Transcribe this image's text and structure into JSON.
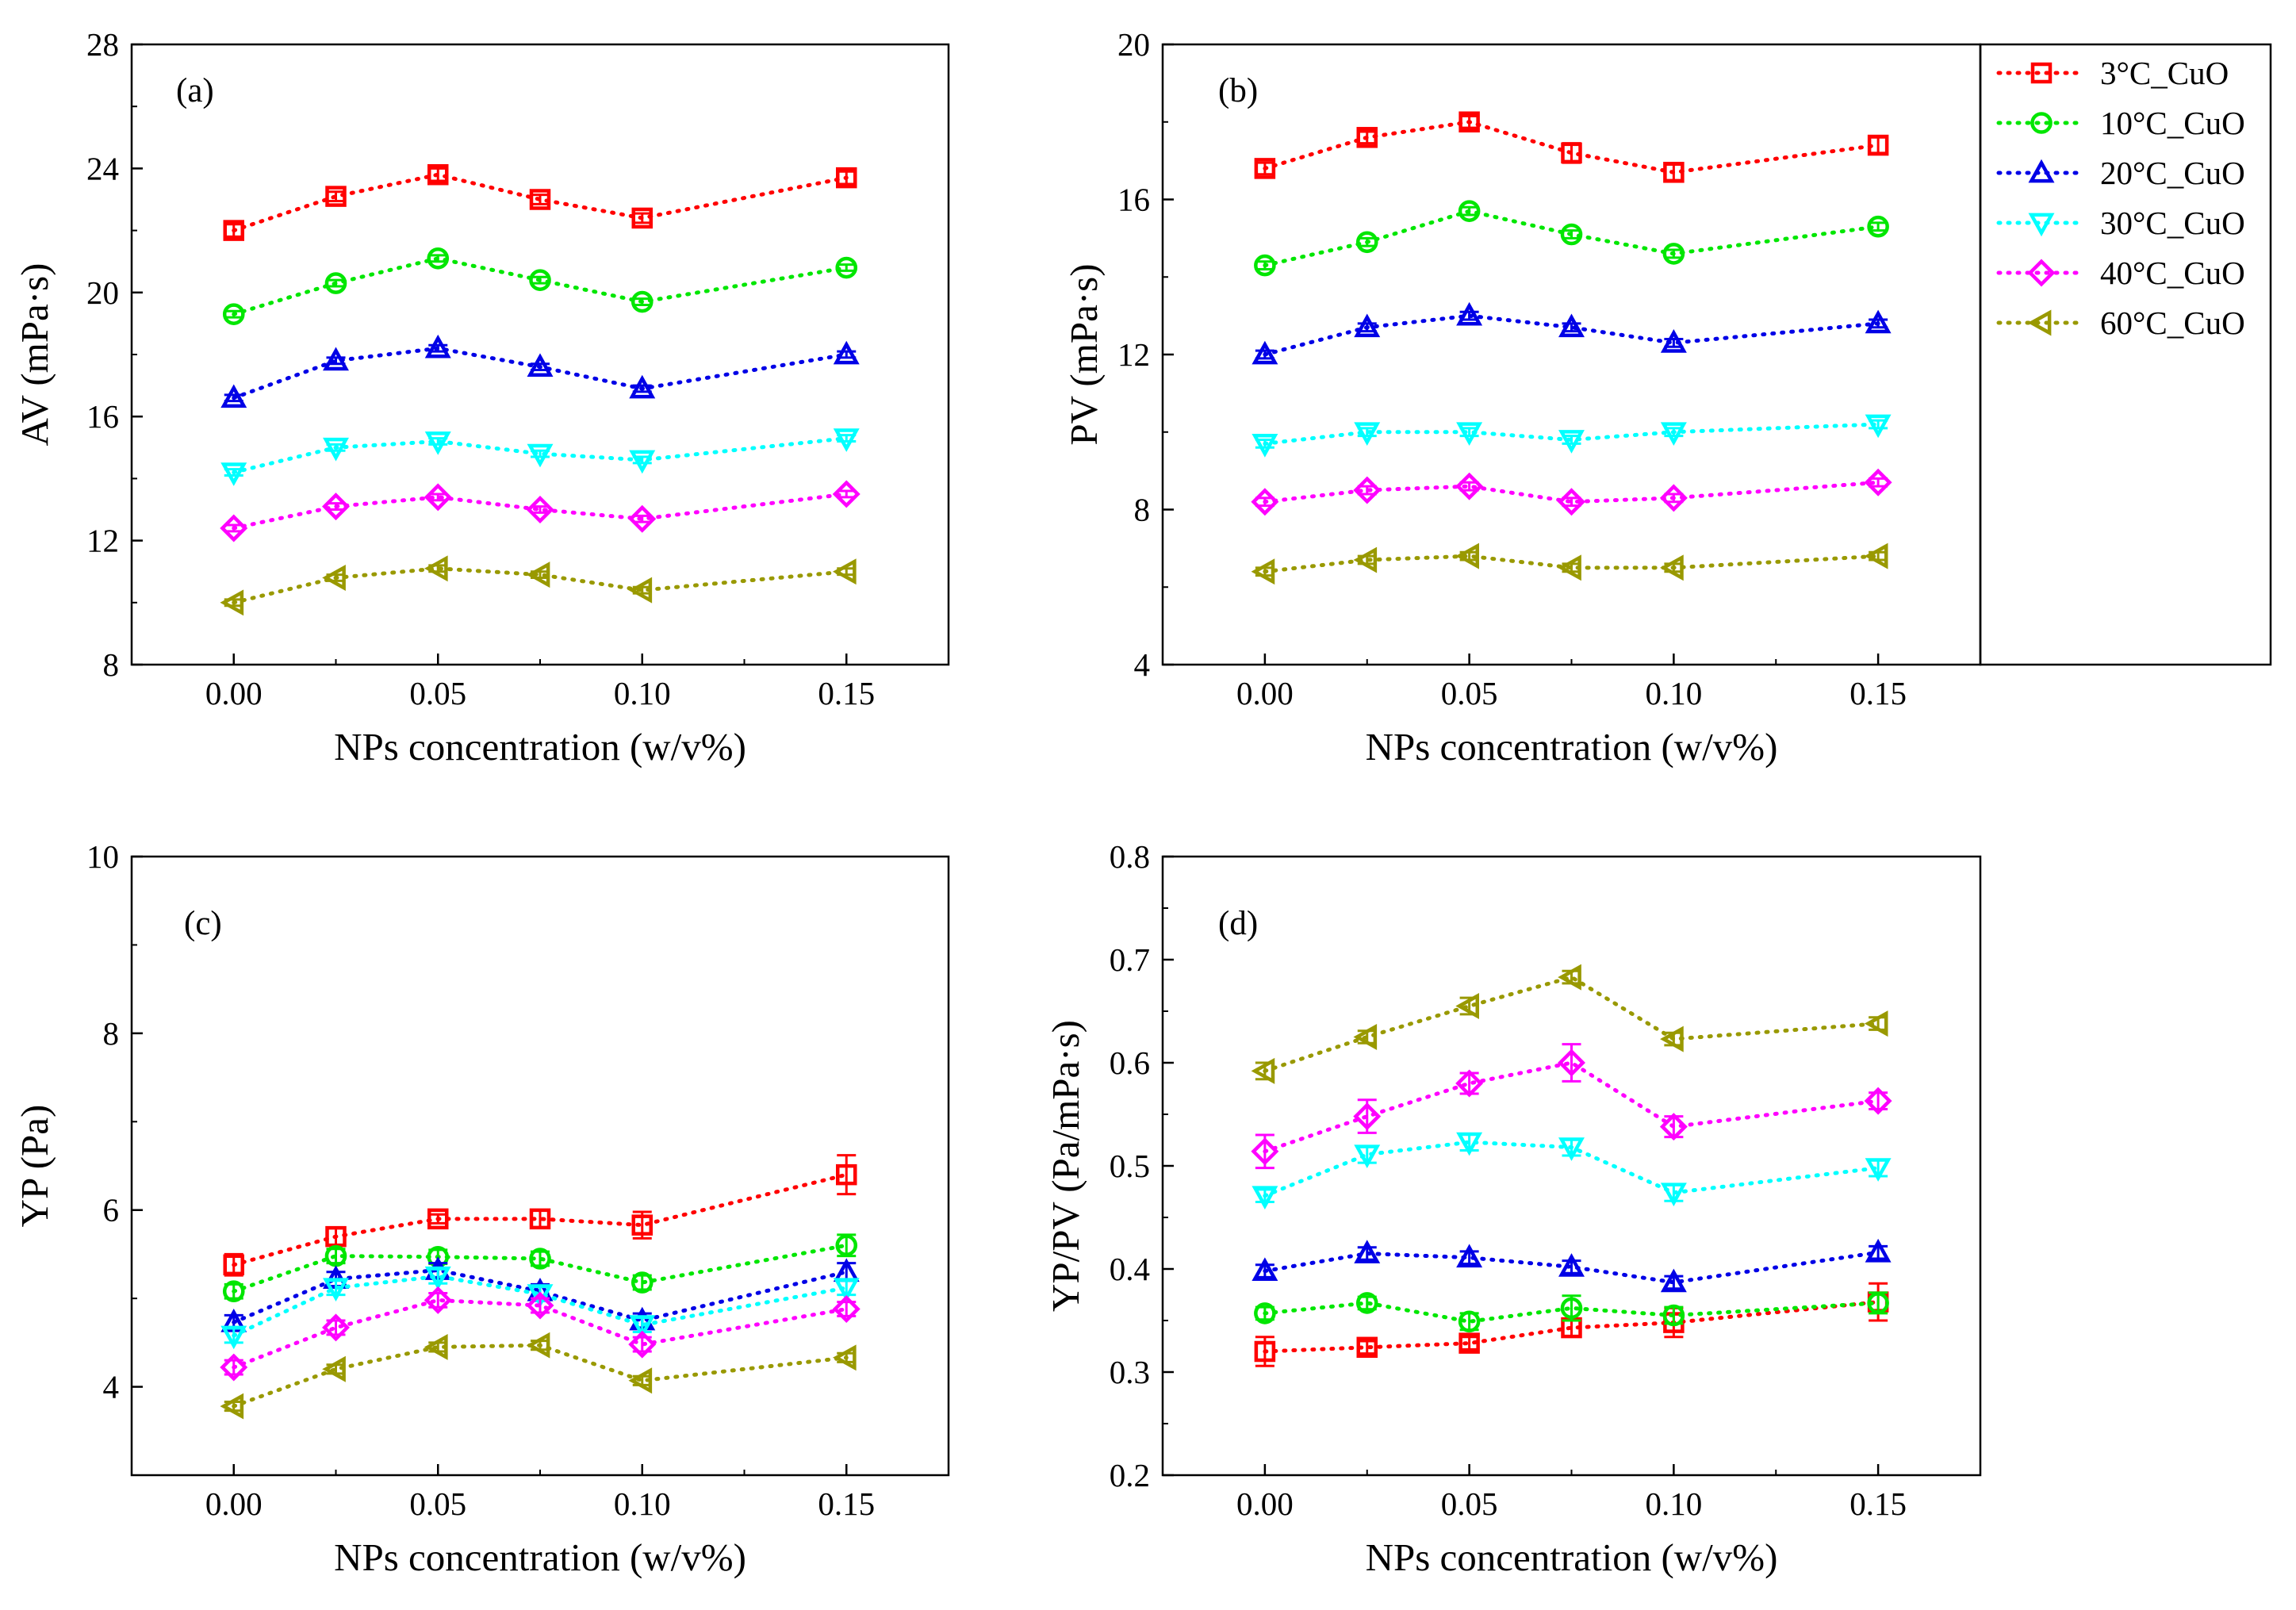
{
  "colors": {
    "3C": "#ff0000",
    "10C": "#00e600",
    "20C": "#0000e6",
    "30C": "#00ffff",
    "40C": "#ff00ff",
    "60C": "#999900"
  },
  "legend": {
    "entries": [
      {
        "key": "3C",
        "label": "3°C_CuO",
        "marker": "square"
      },
      {
        "key": "10C",
        "label": "10°C_CuO",
        "marker": "circle"
      },
      {
        "key": "20C",
        "label": "20°C_CuO",
        "marker": "triangle-up"
      },
      {
        "key": "30C",
        "label": "30°C_CuO",
        "marker": "triangle-down"
      },
      {
        "key": "40C",
        "label": "40°C_CuO",
        "marker": "diamond"
      },
      {
        "key": "60C",
        "label": "60°C_CuO",
        "marker": "triangle-left"
      }
    ]
  },
  "chart_data": [
    {
      "id": "a",
      "type": "scatter",
      "panel_label": "(a)",
      "xlabel": "NPs concentration (w/v%)",
      "ylabel": "AV (mPa·s)",
      "xlim": [
        -0.025,
        0.175
      ],
      "ylim": [
        8,
        28
      ],
      "xticks": [
        0.0,
        0.05,
        0.1,
        0.15
      ],
      "xtick_labels": [
        "0.00",
        "0.05",
        "0.10",
        "0.15"
      ],
      "yticks": [
        8,
        12,
        16,
        20,
        24,
        28
      ],
      "ytick_labels": [
        "8",
        "12",
        "16",
        "20",
        "24",
        "28"
      ],
      "x": [
        0.0,
        0.025,
        0.05,
        0.075,
        0.1,
        0.15
      ],
      "series": [
        {
          "key": "3C",
          "name": "3°C_CuO",
          "values": [
            22.0,
            23.1,
            23.8,
            23.0,
            22.4,
            23.7
          ],
          "errors": [
            0.2,
            0.15,
            0.2,
            0.15,
            0.15,
            0.2
          ]
        },
        {
          "key": "10C",
          "name": "10°C_CuO",
          "values": [
            19.3,
            20.3,
            21.1,
            20.4,
            19.7,
            20.8
          ],
          "errors": [
            0.1,
            0.1,
            0.1,
            0.1,
            0.1,
            0.1
          ]
        },
        {
          "key": "20C",
          "name": "20°C_CuO",
          "values": [
            16.6,
            17.8,
            18.2,
            17.6,
            16.9,
            18.0
          ],
          "errors": [
            0.1,
            0.1,
            0.1,
            0.1,
            0.1,
            0.1
          ]
        },
        {
          "key": "30C",
          "name": "30°C_CuO",
          "values": [
            14.2,
            15.0,
            15.2,
            14.8,
            14.6,
            15.3
          ],
          "errors": [
            0.1,
            0.1,
            0.1,
            0.1,
            0.1,
            0.1
          ]
        },
        {
          "key": "40C",
          "name": "40°C_CuO",
          "values": [
            12.4,
            13.1,
            13.4,
            13.0,
            12.7,
            13.5
          ],
          "errors": [
            0.1,
            0.1,
            0.1,
            0.1,
            0.1,
            0.1
          ]
        },
        {
          "key": "60C",
          "name": "60°C_CuO",
          "values": [
            10.0,
            10.8,
            11.1,
            10.9,
            10.4,
            11.0
          ],
          "errors": [
            0.1,
            0.1,
            0.1,
            0.1,
            0.1,
            0.1
          ]
        }
      ]
    },
    {
      "id": "b",
      "type": "scatter",
      "panel_label": "(b)",
      "xlabel": "NPs concentration (w/v%)",
      "ylabel": "PV (mPa·s)",
      "xlim": [
        -0.025,
        0.175
      ],
      "ylim": [
        4,
        20
      ],
      "xticks": [
        0.0,
        0.05,
        0.1,
        0.15
      ],
      "xtick_labels": [
        "0.00",
        "0.05",
        "0.10",
        "0.15"
      ],
      "yticks": [
        4,
        8,
        12,
        16,
        20
      ],
      "ytick_labels": [
        "4",
        "8",
        "12",
        "16",
        "20"
      ],
      "x": [
        0.0,
        0.025,
        0.05,
        0.075,
        0.1,
        0.15
      ],
      "series": [
        {
          "key": "3C",
          "name": "3°C_CuO",
          "values": [
            16.8,
            17.6,
            18.0,
            17.2,
            16.7,
            17.4
          ],
          "errors": [
            0.15,
            0.15,
            0.15,
            0.25,
            0.2,
            0.2
          ]
        },
        {
          "key": "10C",
          "name": "10°C_CuO",
          "values": [
            14.3,
            14.9,
            15.7,
            15.1,
            14.6,
            15.3
          ],
          "errors": [
            0.1,
            0.1,
            0.1,
            0.1,
            0.1,
            0.1
          ]
        },
        {
          "key": "20C",
          "name": "20°C_CuO",
          "values": [
            12.0,
            12.7,
            13.0,
            12.7,
            12.3,
            12.8
          ],
          "errors": [
            0.1,
            0.1,
            0.1,
            0.1,
            0.1,
            0.1
          ]
        },
        {
          "key": "30C",
          "name": "30°C_CuO",
          "values": [
            9.7,
            10.0,
            10.0,
            9.8,
            10.0,
            10.2
          ],
          "errors": [
            0.1,
            0.1,
            0.1,
            0.1,
            0.1,
            0.1
          ]
        },
        {
          "key": "40C",
          "name": "40°C_CuO",
          "values": [
            8.2,
            8.5,
            8.6,
            8.2,
            8.3,
            8.7
          ],
          "errors": [
            0.1,
            0.1,
            0.1,
            0.1,
            0.1,
            0.1
          ]
        },
        {
          "key": "60C",
          "name": "60°C_CuO",
          "values": [
            6.4,
            6.7,
            6.8,
            6.5,
            6.5,
            6.8
          ],
          "errors": [
            0.1,
            0.1,
            0.1,
            0.1,
            0.1,
            0.1
          ]
        }
      ]
    },
    {
      "id": "c",
      "type": "scatter",
      "panel_label": "(c)",
      "xlabel": "NPs concentration (w/v%)",
      "ylabel": "YP (Pa)",
      "xlim": [
        -0.025,
        0.175
      ],
      "ylim": [
        3,
        10
      ],
      "xticks": [
        0.0,
        0.05,
        0.1,
        0.15
      ],
      "xtick_labels": [
        "0.00",
        "0.05",
        "0.10",
        "0.15"
      ],
      "yticks": [
        4,
        6,
        8,
        10
      ],
      "ytick_labels": [
        "4",
        "6",
        "8",
        "10"
      ],
      "x": [
        0.0,
        0.025,
        0.05,
        0.075,
        0.1,
        0.15
      ],
      "series": [
        {
          "key": "3C",
          "name": "3°C_CuO",
          "values": [
            5.38,
            5.7,
            5.9,
            5.9,
            5.83,
            6.4
          ],
          "errors": [
            0.12,
            0.1,
            0.05,
            0.1,
            0.15,
            0.22
          ]
        },
        {
          "key": "10C",
          "name": "10°C_CuO",
          "values": [
            5.08,
            5.48,
            5.47,
            5.45,
            5.18,
            5.6
          ],
          "errors": [
            0.08,
            0.08,
            0.08,
            0.08,
            0.08,
            0.12
          ]
        },
        {
          "key": "20C",
          "name": "20°C_CuO",
          "values": [
            4.73,
            5.22,
            5.32,
            5.08,
            4.75,
            5.3
          ],
          "errors": [
            0.08,
            0.08,
            0.08,
            0.08,
            0.08,
            0.1
          ]
        },
        {
          "key": "30C",
          "name": "30°C_CuO",
          "values": [
            4.58,
            5.12,
            5.25,
            5.05,
            4.7,
            5.12
          ],
          "errors": [
            0.08,
            0.08,
            0.08,
            0.08,
            0.08,
            0.08
          ]
        },
        {
          "key": "40C",
          "name": "40°C_CuO",
          "values": [
            4.22,
            4.67,
            4.98,
            4.92,
            4.48,
            4.88
          ],
          "errors": [
            0.08,
            0.08,
            0.08,
            0.08,
            0.08,
            0.08
          ]
        },
        {
          "key": "60C",
          "name": "60°C_CuO",
          "values": [
            3.78,
            4.2,
            4.45,
            4.47,
            4.07,
            4.33
          ],
          "errors": [
            0.05,
            0.05,
            0.05,
            0.05,
            0.05,
            0.05
          ]
        }
      ]
    },
    {
      "id": "d",
      "type": "scatter",
      "panel_label": "(d)",
      "xlabel": "NPs concentration (w/v%)",
      "ylabel": "YP/PV (Pa/mPa·s)",
      "xlim": [
        -0.025,
        0.175
      ],
      "ylim": [
        0.2,
        0.8
      ],
      "xticks": [
        0.0,
        0.05,
        0.1,
        0.15
      ],
      "xtick_labels": [
        "0.00",
        "0.05",
        "0.10",
        "0.15"
      ],
      "yticks": [
        0.2,
        0.3,
        0.4,
        0.5,
        0.6,
        0.7,
        0.8
      ],
      "ytick_labels": [
        "0.2",
        "0.3",
        "0.4",
        "0.5",
        "0.6",
        "0.7",
        "0.8"
      ],
      "x": [
        0.0,
        0.025,
        0.05,
        0.075,
        0.1,
        0.15
      ],
      "series": [
        {
          "key": "3C",
          "name": "3°C_CuO",
          "values": [
            0.32,
            0.324,
            0.328,
            0.343,
            0.348,
            0.368
          ],
          "errors": [
            0.014,
            0.006,
            0.006,
            0.008,
            0.014,
            0.018
          ]
        },
        {
          "key": "10C",
          "name": "10°C_CuO",
          "values": [
            0.357,
            0.367,
            0.349,
            0.362,
            0.355,
            0.367
          ],
          "errors": [
            0.006,
            0.006,
            0.008,
            0.012,
            0.008,
            0.01
          ]
        },
        {
          "key": "20C",
          "name": "20°C_CuO",
          "values": [
            0.398,
            0.415,
            0.411,
            0.402,
            0.387,
            0.416
          ],
          "errors": [
            0.006,
            0.006,
            0.006,
            0.006,
            0.006,
            0.006
          ]
        },
        {
          "key": "30C",
          "name": "30°C_CuO",
          "values": [
            0.471,
            0.511,
            0.523,
            0.518,
            0.474,
            0.498
          ],
          "errors": [
            0.006,
            0.008,
            0.008,
            0.008,
            0.008,
            0.008
          ]
        },
        {
          "key": "40C",
          "name": "40°C_CuO",
          "values": [
            0.514,
            0.548,
            0.58,
            0.6,
            0.538,
            0.563
          ],
          "errors": [
            0.016,
            0.016,
            0.01,
            0.018,
            0.01,
            0.008
          ]
        },
        {
          "key": "60C",
          "name": "60°C_CuO",
          "values": [
            0.592,
            0.625,
            0.655,
            0.683,
            0.623,
            0.638
          ],
          "errors": [
            0.008,
            0.006,
            0.008,
            0.006,
            0.006,
            0.006
          ]
        }
      ]
    }
  ]
}
